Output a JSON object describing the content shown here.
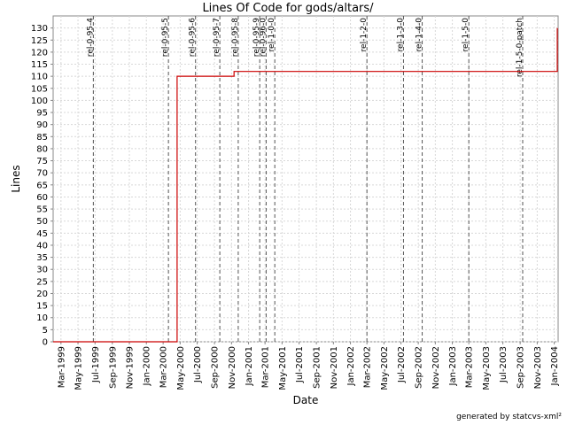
{
  "chart_data": {
    "type": "line",
    "title": "Lines Of Code for gods/altars/",
    "xlabel": "Date",
    "ylabel": "Lines",
    "ylim": [
      0,
      135
    ],
    "yticks": [
      0,
      5,
      10,
      15,
      20,
      25,
      30,
      35,
      40,
      45,
      50,
      55,
      60,
      65,
      70,
      75,
      80,
      85,
      90,
      95,
      100,
      105,
      110,
      115,
      120,
      125,
      130
    ],
    "xlim": [
      "1999-02-01",
      "2004-01-15"
    ],
    "xticks": [
      {
        "label": "Mar-1999",
        "date": "1999-03-01"
      },
      {
        "label": "May-1999",
        "date": "1999-05-01"
      },
      {
        "label": "Jul-1999",
        "date": "1999-07-01"
      },
      {
        "label": "Sep-1999",
        "date": "1999-09-01"
      },
      {
        "label": "Nov-1999",
        "date": "1999-11-01"
      },
      {
        "label": "Jan-2000",
        "date": "2000-01-01"
      },
      {
        "label": "Mar-2000",
        "date": "2000-03-01"
      },
      {
        "label": "May-2000",
        "date": "2000-05-01"
      },
      {
        "label": "Jul-2000",
        "date": "2000-07-01"
      },
      {
        "label": "Sep-2000",
        "date": "2000-09-01"
      },
      {
        "label": "Nov-2000",
        "date": "2000-11-01"
      },
      {
        "label": "Jan-2001",
        "date": "2001-01-01"
      },
      {
        "label": "Mar-2001",
        "date": "2001-03-01"
      },
      {
        "label": "May-2001",
        "date": "2001-05-01"
      },
      {
        "label": "Jul-2001",
        "date": "2001-07-01"
      },
      {
        "label": "Sep-2001",
        "date": "2001-09-01"
      },
      {
        "label": "Nov-2001",
        "date": "2001-11-01"
      },
      {
        "label": "Jan-2002",
        "date": "2002-01-01"
      },
      {
        "label": "Mar-2002",
        "date": "2002-03-01"
      },
      {
        "label": "May-2002",
        "date": "2002-05-01"
      },
      {
        "label": "Jul-2002",
        "date": "2002-07-01"
      },
      {
        "label": "Sep-2002",
        "date": "2002-09-01"
      },
      {
        "label": "Nov-2002",
        "date": "2002-11-01"
      },
      {
        "label": "Jan-2003",
        "date": "2003-01-01"
      },
      {
        "label": "Mar-2003",
        "date": "2003-03-01"
      },
      {
        "label": "May-2003",
        "date": "2003-05-01"
      },
      {
        "label": "Jul-2003",
        "date": "2003-07-01"
      },
      {
        "label": "Sep-2003",
        "date": "2003-09-01"
      },
      {
        "label": "Nov-2003",
        "date": "2003-11-01"
      },
      {
        "label": "Jan-2004",
        "date": "2004-01-01"
      }
    ],
    "series": [
      {
        "color": "#cc0000",
        "step": true,
        "points": [
          {
            "x": "1999-02-01",
            "y": 0
          },
          {
            "x": "2000-04-20",
            "y": 0
          },
          {
            "x": "2000-04-20",
            "y": 110
          },
          {
            "x": "2000-11-10",
            "y": 110
          },
          {
            "x": "2000-11-10",
            "y": 112
          },
          {
            "x": "2004-01-12",
            "y": 112
          },
          {
            "x": "2004-01-12",
            "y": 130
          }
        ]
      }
    ],
    "markers": [
      {
        "label": "rel-0-95-4",
        "date": "1999-06-25"
      },
      {
        "label": "rel-0-95-5",
        "date": "2000-03-20"
      },
      {
        "label": "rel-0-95-6",
        "date": "2000-06-25"
      },
      {
        "label": "rel-0-95-7",
        "date": "2000-09-20"
      },
      {
        "label": "rel-0-95-8",
        "date": "2000-11-25"
      },
      {
        "label": "rel-0-95-9",
        "date": "2001-02-10"
      },
      {
        "label": "rel-0-96-0",
        "date": "2001-03-05"
      },
      {
        "label": "rel-1-0-0",
        "date": "2001-04-05"
      },
      {
        "label": "rel-1-2-0",
        "date": "2002-03-01"
      },
      {
        "label": "rel-1-3-0",
        "date": "2002-07-10"
      },
      {
        "label": "rel-1-4-0",
        "date": "2002-09-15"
      },
      {
        "label": "rel-1-5-0",
        "date": "2003-03-01"
      },
      {
        "label": "rel-1-5-0-patch",
        "date": "2003-09-10"
      }
    ],
    "grid": true,
    "footer": "generated by statcvs-xml²"
  }
}
